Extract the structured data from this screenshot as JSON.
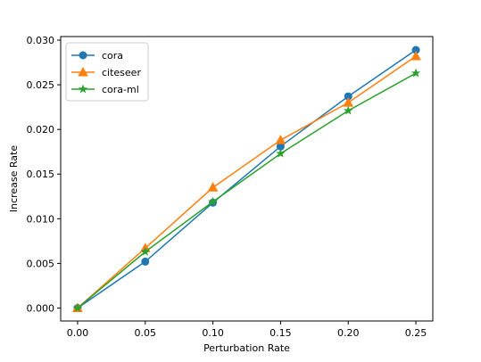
{
  "chart_data": {
    "type": "line",
    "title": "",
    "xlabel": "Perturbation Rate",
    "ylabel": "Increase Rate",
    "x": [
      0.0,
      0.05,
      0.1,
      0.15,
      0.2,
      0.25
    ],
    "xlim": [
      -0.0125,
      0.2625
    ],
    "ylim": [
      -0.00145,
      0.0304
    ],
    "xticks": [
      0.0,
      0.05,
      0.1,
      0.15,
      0.2,
      0.25
    ],
    "xtick_labels": [
      "0.00",
      "0.05",
      "0.10",
      "0.15",
      "0.20",
      "0.25"
    ],
    "yticks": [
      0.0,
      0.005,
      0.01,
      0.015,
      0.02,
      0.025,
      0.03
    ],
    "ytick_labels": [
      "0.000",
      "0.005",
      "0.010",
      "0.015",
      "0.020",
      "0.025",
      "0.030"
    ],
    "grid": false,
    "legend_position": "top-left",
    "series": [
      {
        "name": "cora",
        "color": "#1f77b4",
        "marker": "circle",
        "values": [
          0.0,
          0.0052,
          0.0118,
          0.0181,
          0.0237,
          0.0289
        ]
      },
      {
        "name": "citeseer",
        "color": "#ff7f0e",
        "marker": "triangle",
        "values": [
          0.0,
          0.0067,
          0.0135,
          0.0188,
          0.023,
          0.0282
        ]
      },
      {
        "name": "cora-ml",
        "color": "#2ca02c",
        "marker": "star",
        "values": [
          0.0,
          0.0063,
          0.0119,
          0.0173,
          0.0221,
          0.0263
        ]
      }
    ]
  }
}
